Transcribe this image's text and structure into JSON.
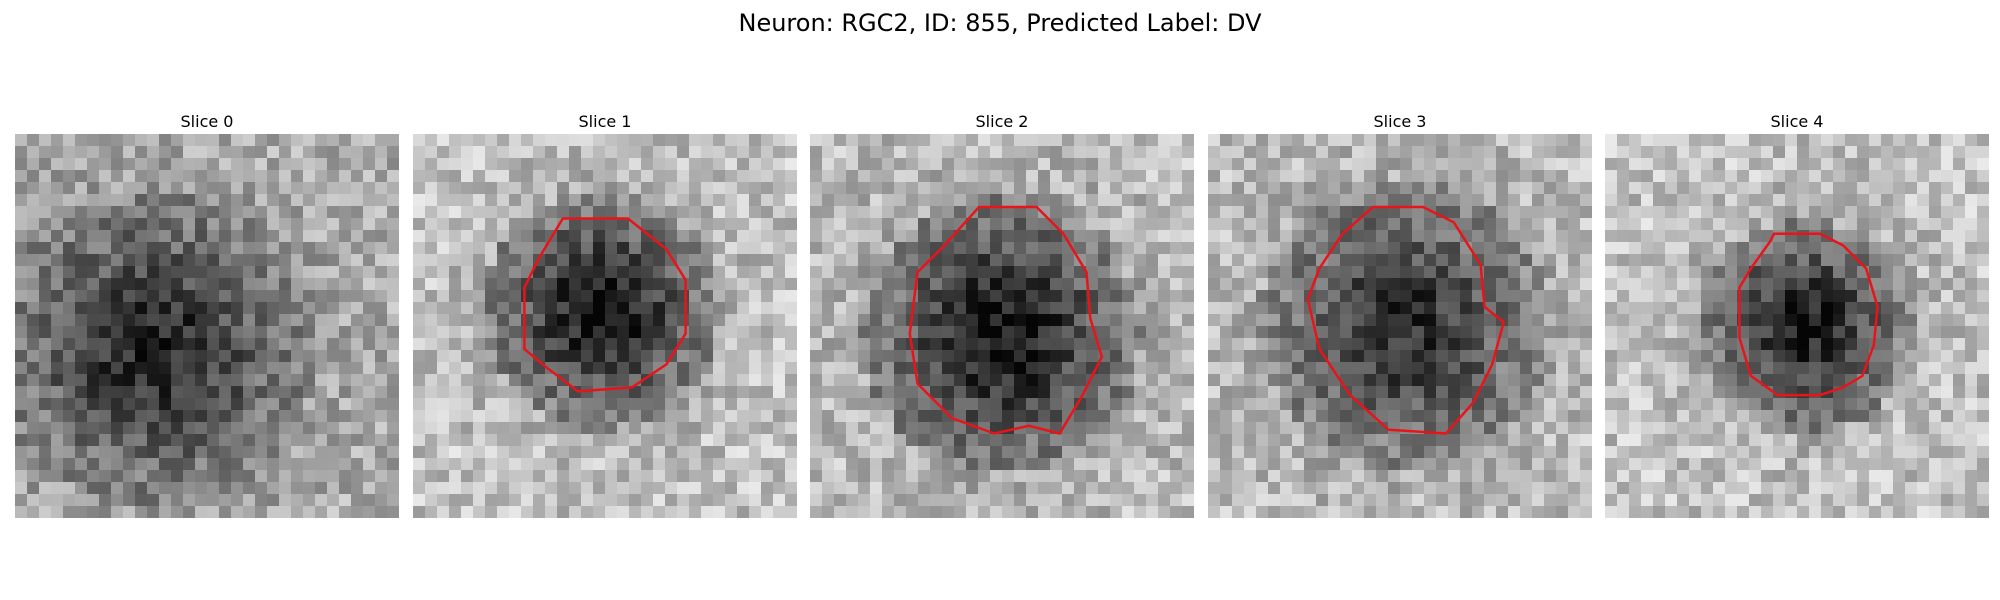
{
  "figure": {
    "title": "Neuron: RGC2, ID: 855, Predicted Label: DV"
  },
  "contour_color": "#e8141a",
  "slices": [
    {
      "title": "Slice 0",
      "dark_center": [
        0.36,
        0.56
      ],
      "dark_radius": 0.3,
      "dark_strength": 0.48,
      "bright_bias": 0.06,
      "contour": []
    },
    {
      "title": "Slice 1",
      "dark_center": [
        0.49,
        0.46
      ],
      "dark_radius": 0.22,
      "dark_strength": 0.55,
      "bright_bias": 0.14,
      "contour": [
        [
          0.39,
          0.22
        ],
        [
          0.56,
          0.22
        ],
        [
          0.66,
          0.3
        ],
        [
          0.71,
          0.38
        ],
        [
          0.71,
          0.52
        ],
        [
          0.66,
          0.6
        ],
        [
          0.57,
          0.66
        ],
        [
          0.43,
          0.67
        ],
        [
          0.35,
          0.61
        ],
        [
          0.29,
          0.56
        ],
        [
          0.29,
          0.4
        ],
        [
          0.33,
          0.32
        ]
      ]
    },
    {
      "title": "Slice 2",
      "dark_center": [
        0.5,
        0.52
      ],
      "dark_radius": 0.26,
      "dark_strength": 0.55,
      "bright_bias": 0.12,
      "contour": [
        [
          0.44,
          0.19
        ],
        [
          0.59,
          0.19
        ],
        [
          0.66,
          0.26
        ],
        [
          0.72,
          0.36
        ],
        [
          0.73,
          0.48
        ],
        [
          0.76,
          0.58
        ],
        [
          0.71,
          0.68
        ],
        [
          0.65,
          0.78
        ],
        [
          0.57,
          0.76
        ],
        [
          0.48,
          0.78
        ],
        [
          0.37,
          0.74
        ],
        [
          0.28,
          0.65
        ],
        [
          0.26,
          0.52
        ],
        [
          0.28,
          0.36
        ],
        [
          0.35,
          0.29
        ]
      ]
    },
    {
      "title": "Slice 3",
      "dark_center": [
        0.51,
        0.5
      ],
      "dark_radius": 0.27,
      "dark_strength": 0.45,
      "bright_bias": 0.12,
      "contour": [
        [
          0.43,
          0.19
        ],
        [
          0.56,
          0.19
        ],
        [
          0.64,
          0.23
        ],
        [
          0.71,
          0.34
        ],
        [
          0.72,
          0.45
        ],
        [
          0.77,
          0.49
        ],
        [
          0.74,
          0.6
        ],
        [
          0.69,
          0.7
        ],
        [
          0.62,
          0.78
        ],
        [
          0.47,
          0.77
        ],
        [
          0.37,
          0.68
        ],
        [
          0.29,
          0.56
        ],
        [
          0.26,
          0.43
        ],
        [
          0.29,
          0.35
        ],
        [
          0.35,
          0.26
        ]
      ]
    },
    {
      "title": "Slice 4",
      "dark_center": [
        0.52,
        0.5
      ],
      "dark_radius": 0.2,
      "dark_strength": 0.52,
      "bright_bias": 0.14,
      "contour": [
        [
          0.44,
          0.26
        ],
        [
          0.56,
          0.26
        ],
        [
          0.62,
          0.29
        ],
        [
          0.68,
          0.35
        ],
        [
          0.71,
          0.45
        ],
        [
          0.7,
          0.55
        ],
        [
          0.67,
          0.63
        ],
        [
          0.62,
          0.66
        ],
        [
          0.56,
          0.68
        ],
        [
          0.45,
          0.68
        ],
        [
          0.38,
          0.63
        ],
        [
          0.35,
          0.53
        ],
        [
          0.35,
          0.4
        ],
        [
          0.38,
          0.35
        ],
        [
          0.43,
          0.28
        ]
      ]
    }
  ]
}
